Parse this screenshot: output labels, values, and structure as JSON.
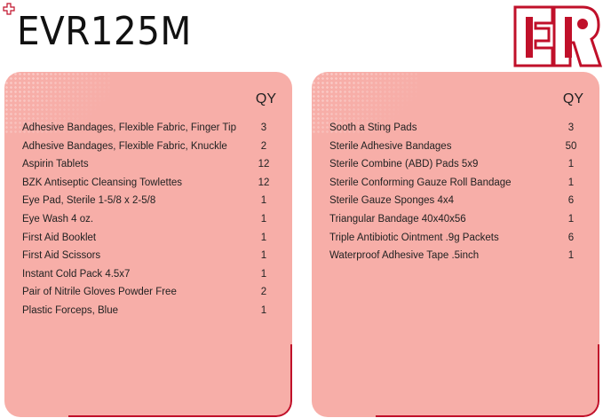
{
  "title": "EVR125M",
  "logo_text": "ER",
  "colors": {
    "accent": "#c0102a",
    "panel": "#f7aea8"
  },
  "left": {
    "header": "QY",
    "items": [
      {
        "name": "Adhesive Bandages, Flexible Fabric, Finger Tip",
        "qty": "3"
      },
      {
        "name": "Adhesive Bandages, Flexible Fabric, Knuckle",
        "qty": "2"
      },
      {
        "name": "Aspirin Tablets",
        "qty": "12"
      },
      {
        "name": "BZK Antiseptic Cleansing Towlettes",
        "qty": "12"
      },
      {
        "name": "Eye Pad, Sterile 1-5/8 x 2-5/8",
        "qty": "1"
      },
      {
        "name": "Eye Wash 4 oz.",
        "qty": "1"
      },
      {
        "name": "First Aid Booklet",
        "qty": "1"
      },
      {
        "name": "First Aid Scissors",
        "qty": "1"
      },
      {
        "name": "Instant Cold Pack 4.5x7",
        "qty": "1"
      },
      {
        "name": "Pair of Nitrile Gloves Powder Free",
        "qty": "2"
      },
      {
        "name": "Plastic Forceps, Blue",
        "qty": "1"
      }
    ]
  },
  "right": {
    "header": "QY",
    "items": [
      {
        "name": "Sooth a Sting Pads",
        "qty": "3"
      },
      {
        "name": "Sterile Adhesive Bandages",
        "qty": "50"
      },
      {
        "name": "Sterile Combine (ABD) Pads 5x9",
        "qty": "1"
      },
      {
        "name": "Sterile Conforming Gauze Roll Bandage",
        "qty": "1"
      },
      {
        "name": "Sterile Gauze Sponges 4x4",
        "qty": "6"
      },
      {
        "name": "Triangular Bandage 40x40x56",
        "qty": "1"
      },
      {
        "name": "Triple Antibiotic Ointment .9g Packets",
        "qty": "6"
      },
      {
        "name": "Waterproof Adhesive Tape .5inch",
        "qty": "1"
      }
    ]
  }
}
